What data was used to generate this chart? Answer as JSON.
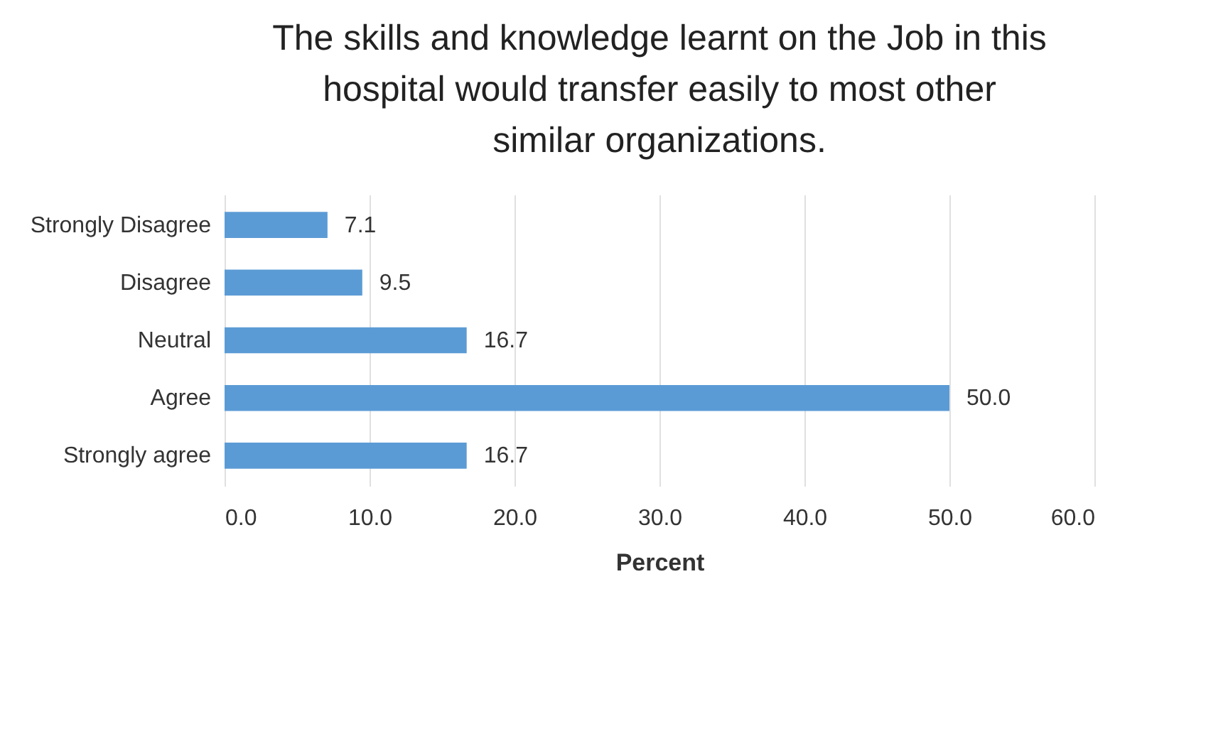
{
  "chart_data": {
    "type": "bar",
    "orientation": "horizontal",
    "title": "The skills and knowledge learnt on the Job in this hospital would transfer easily to most other similar organizations.",
    "xlabel": "Percent",
    "categories": [
      "Strongly Disagree",
      "Disagree",
      "Neutral",
      "Agree",
      "Strongly agree"
    ],
    "values": [
      7.1,
      9.5,
      16.7,
      50.0,
      16.7
    ],
    "value_labels": [
      "7.1",
      "9.5",
      "16.7",
      "50.0",
      "16.7"
    ],
    "color": "#5b9bd5",
    "xlim": [
      0,
      60
    ],
    "xticks": [
      {
        "value": 0,
        "label": "0.0"
      },
      {
        "value": 10,
        "label": "10.0"
      },
      {
        "value": 20,
        "label": "20.0"
      },
      {
        "value": 30,
        "label": "30.0"
      },
      {
        "value": 40,
        "label": "40.0"
      },
      {
        "value": 50,
        "label": "50.0"
      },
      {
        "value": 60,
        "label": "60.0"
      }
    ],
    "grid": "x"
  }
}
